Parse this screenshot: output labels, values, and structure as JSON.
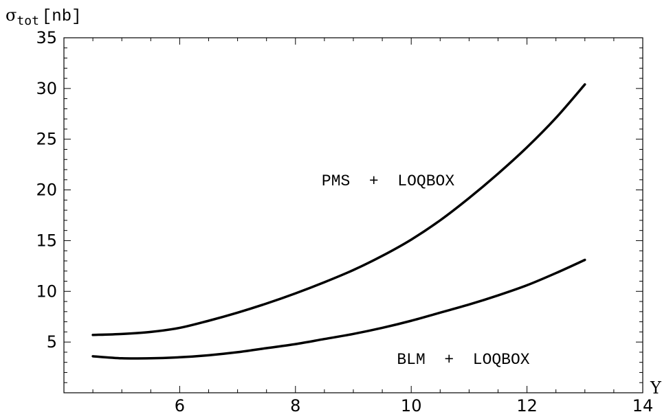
{
  "chart_data": {
    "type": "line",
    "title": "",
    "ylabel": {
      "symbol": "σ",
      "subscript": "tot",
      "unit": "[nb]"
    },
    "xlabel": "Y",
    "xlim": [
      4.0,
      14.0
    ],
    "ylim": [
      0,
      35
    ],
    "x_ticks": [
      6,
      8,
      10,
      12,
      14
    ],
    "y_ticks": [
      5,
      10,
      15,
      20,
      25,
      30,
      35
    ],
    "frame": true,
    "grid": false,
    "series": [
      {
        "x": [
          4.5,
          5.0,
          5.5,
          6.0,
          6.5,
          7.0,
          7.5,
          8.0,
          8.5,
          9.0,
          9.5,
          10.0,
          10.5,
          11.0,
          11.5,
          12.0,
          12.5,
          13.0
        ],
        "y": [
          5.7,
          5.8,
          6.0,
          6.4,
          7.1,
          7.9,
          8.8,
          9.8,
          10.9,
          12.1,
          13.5,
          15.1,
          17.0,
          19.2,
          21.6,
          24.2,
          27.1,
          30.4
        ]
      },
      {
        "x": [
          4.5,
          5.0,
          5.5,
          6.0,
          6.5,
          7.0,
          7.5,
          8.0,
          8.5,
          9.0,
          9.5,
          10.0,
          10.5,
          11.0,
          11.5,
          12.0,
          12.5,
          13.0
        ],
        "y": [
          3.6,
          3.4,
          3.4,
          3.5,
          3.7,
          4.0,
          4.4,
          4.8,
          5.3,
          5.8,
          6.4,
          7.1,
          7.9,
          8.7,
          9.6,
          10.6,
          11.8,
          13.1
        ]
      }
    ],
    "annotations": [
      {
        "text": "PMS  +  LOQBOX",
        "x": 9.6,
        "y": 21.0
      },
      {
        "text": "BLM  +  LOQBOX",
        "x": 10.9,
        "y": 3.4
      }
    ]
  }
}
